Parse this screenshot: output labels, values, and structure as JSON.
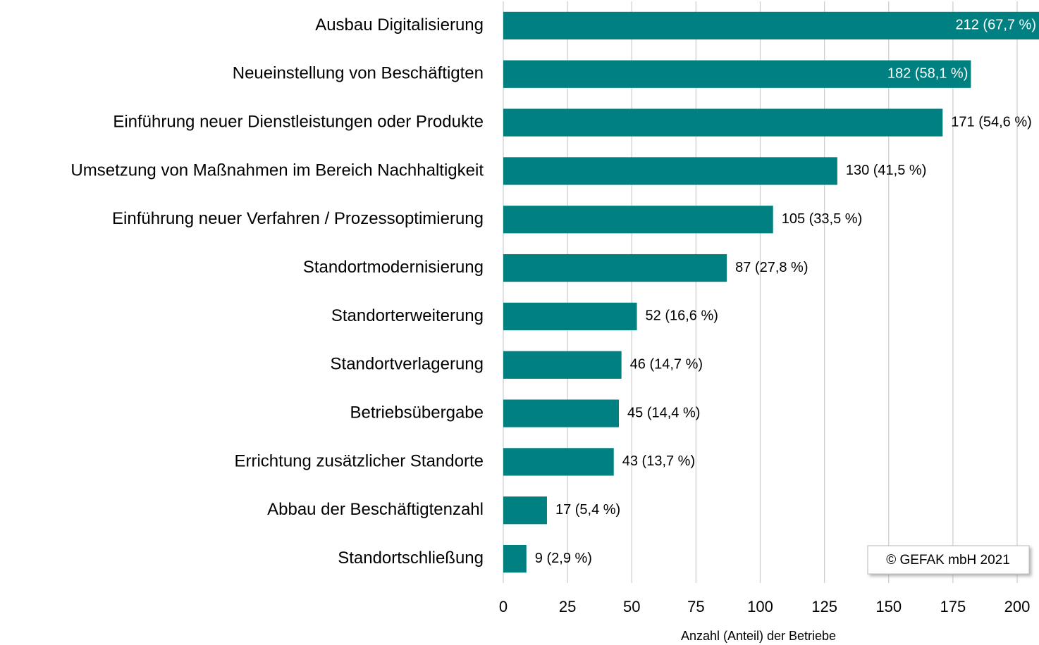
{
  "chart_data": {
    "type": "bar",
    "orientation": "horizontal",
    "categories": [
      "Ausbau Digitalisierung",
      "Neueinstellung von Beschäftigten",
      "Einführung neuer Dienstleistungen oder Produkte",
      "Umsetzung von Maßnahmen im Bereich Nachhaltigkeit",
      "Einführung neuer Verfahren / Prozessoptimierung",
      "Standortmodernisierung",
      "Standorterweiterung",
      "Standortverlagerung",
      "Betriebsübergabe",
      "Errichtung zusätzlicher Standorte",
      "Abbau der Beschäftigtenzahl",
      "Standortschließung"
    ],
    "values": [
      212,
      182,
      171,
      130,
      105,
      87,
      52,
      46,
      45,
      43,
      17,
      9
    ],
    "value_labels": [
      "212 (67,7 %)",
      "182 (58,1 %)",
      "171 (54,6 %)",
      "130 (41,5 %)",
      "105 (33,5 %)",
      "87 (27,8 %)",
      "52 (16,6 %)",
      "46 (14,7 %)",
      "45 (14,4 %)",
      "43 (13,7 %)",
      "17 (5,4 %)",
      "9 (2,9 %)"
    ],
    "color": "#008080",
    "xlabel": "Anzahl (Anteil) der Betriebe",
    "xlim": [
      0,
      200
    ],
    "xticks": [
      0,
      25,
      50,
      75,
      100,
      125,
      150,
      175,
      200
    ],
    "grid": true,
    "annotation": "© GEFAK mbH 2021"
  }
}
